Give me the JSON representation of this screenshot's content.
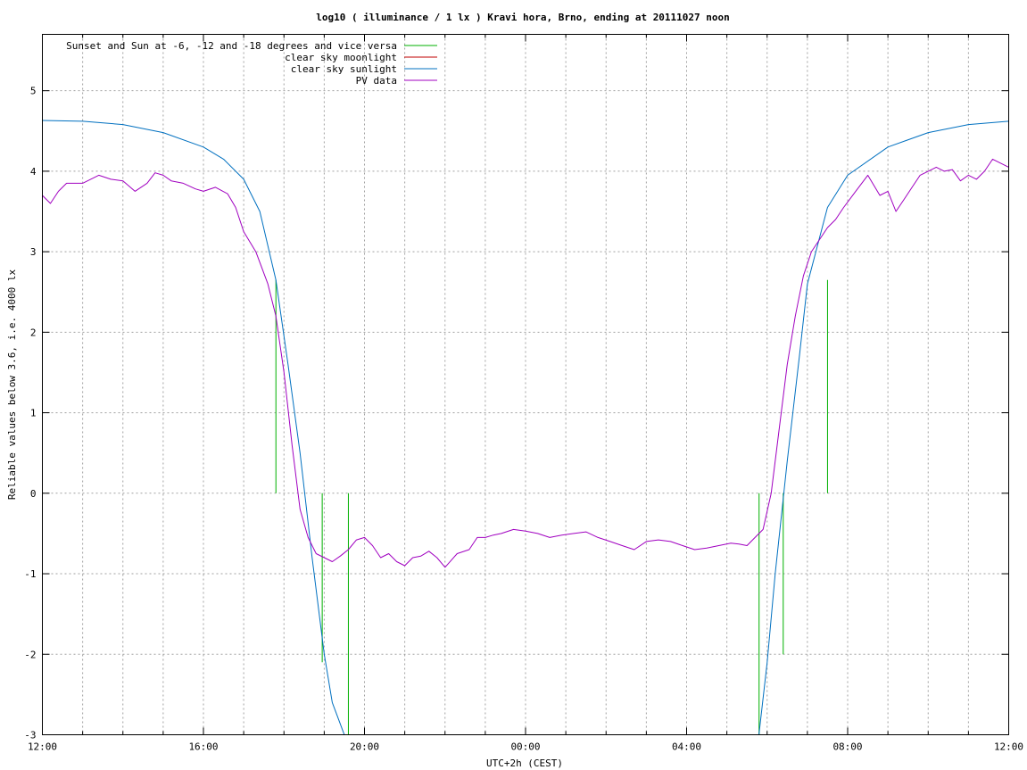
{
  "colors": {
    "sun_events": "#00b000",
    "moonlight": "#c00000",
    "sunlight": "#0070c0",
    "pv_data": "#a000c0"
  },
  "chart_data": {
    "type": "line",
    "title": "log10 ( illuminance / 1 lx ) Kravi hora, Brno, ending at 20111027 noon",
    "xlabel": "UTC+2h (CEST)",
    "ylabel": "Reliable values below 3.6, i.e. 4000 lx",
    "x_unit": "hours since 12:00",
    "xlim": [
      0,
      24
    ],
    "ylim": [
      -3,
      5.7
    ],
    "x_tick_labels": [
      "12:00",
      "16:00",
      "20:00",
      "00:00",
      "04:00",
      "08:00",
      "12:00"
    ],
    "x_tick_positions": [
      0,
      4,
      8,
      12,
      16,
      20,
      24
    ],
    "y_ticks": [
      -3,
      -2,
      -1,
      0,
      1,
      2,
      3,
      4,
      5
    ],
    "grid": true,
    "legend_position": "top-left",
    "legend": [
      "Sunset and Sun at -6, -12 and -18 degrees and vice versa",
      "clear sky moonlight",
      "clear sky sunlight",
      "PV data"
    ],
    "series": [
      {
        "name": "Sunset and Sun at -6, -12 and -18 degrees and vice versa",
        "kind": "impulses",
        "x": [
          5.8,
          6.95,
          7.6,
          17.8,
          18.4,
          19.5
        ],
        "y": [
          2.65,
          -2.1,
          -3,
          -3,
          -2,
          2.65
        ]
      },
      {
        "name": "clear sky moonlight",
        "kind": "line",
        "x": [],
        "y": []
      },
      {
        "name": "clear sky sunlight",
        "kind": "line",
        "x": [
          0,
          1,
          2,
          3,
          4,
          4.5,
          5,
          5.4,
          5.8,
          6.1,
          6.4,
          6.7,
          7.0,
          7.2,
          7.5,
          7.7,
          7.85,
          17.55,
          17.75,
          18.0,
          18.2,
          18.5,
          18.8,
          19.0,
          19.5,
          20.0,
          21.0,
          22.0,
          23.0,
          24.0
        ],
        "y": [
          4.63,
          4.62,
          4.58,
          4.48,
          4.3,
          4.15,
          3.9,
          3.5,
          2.65,
          1.6,
          0.5,
          -0.8,
          -2.0,
          -2.6,
          -3.0,
          -3.3,
          -3.6,
          -3.6,
          -3.2,
          -2.1,
          -1.0,
          0.4,
          1.7,
          2.6,
          3.55,
          3.95,
          4.3,
          4.48,
          4.58,
          4.62
        ]
      },
      {
        "name": "PV data",
        "kind": "line",
        "x": [
          0,
          0.2,
          0.4,
          0.6,
          1.0,
          1.4,
          1.7,
          2.0,
          2.3,
          2.6,
          2.8,
          3.0,
          3.2,
          3.5,
          3.8,
          4.0,
          4.3,
          4.6,
          4.8,
          5.0,
          5.3,
          5.6,
          5.8,
          6.0,
          6.2,
          6.4,
          6.6,
          6.8,
          7.0,
          7.2,
          7.4,
          7.6,
          7.8,
          8.0,
          8.2,
          8.4,
          8.6,
          8.8,
          9.0,
          9.2,
          9.4,
          9.6,
          9.8,
          10.0,
          10.3,
          10.6,
          10.8,
          11.0,
          11.2,
          11.4,
          11.7,
          12.0,
          12.3,
          12.6,
          12.9,
          13.2,
          13.5,
          13.8,
          14.1,
          14.4,
          14.7,
          15.0,
          15.3,
          15.6,
          15.9,
          16.2,
          16.5,
          16.8,
          17.1,
          17.3,
          17.5,
          17.7,
          17.9,
          18.1,
          18.3,
          18.5,
          18.7,
          18.9,
          19.1,
          19.3,
          19.5,
          19.7,
          19.9,
          20.2,
          20.5,
          20.8,
          21.0,
          21.2,
          21.4,
          21.6,
          21.8,
          22.0,
          22.2,
          22.4,
          22.6,
          22.8,
          23.0,
          23.2,
          23.4,
          23.6,
          23.8,
          24.0
        ],
        "y": [
          3.7,
          3.6,
          3.75,
          3.85,
          3.85,
          3.95,
          3.9,
          3.88,
          3.75,
          3.85,
          3.98,
          3.95,
          3.88,
          3.85,
          3.78,
          3.75,
          3.8,
          3.72,
          3.55,
          3.25,
          3.0,
          2.6,
          2.2,
          1.5,
          0.6,
          -0.2,
          -0.55,
          -0.75,
          -0.8,
          -0.85,
          -0.78,
          -0.7,
          -0.58,
          -0.55,
          -0.65,
          -0.8,
          -0.75,
          -0.85,
          -0.9,
          -0.8,
          -0.78,
          -0.72,
          -0.8,
          -0.92,
          -0.75,
          -0.7,
          -0.55,
          -0.55,
          -0.52,
          -0.5,
          -0.45,
          -0.47,
          -0.5,
          -0.55,
          -0.52,
          -0.5,
          -0.48,
          -0.55,
          -0.6,
          -0.65,
          -0.7,
          -0.6,
          -0.58,
          -0.6,
          -0.65,
          -0.7,
          -0.68,
          -0.65,
          -0.62,
          -0.63,
          -0.65,
          -0.55,
          -0.45,
          0.0,
          0.8,
          1.6,
          2.2,
          2.7,
          3.0,
          3.15,
          3.3,
          3.4,
          3.55,
          3.75,
          3.95,
          3.7,
          3.75,
          3.5,
          3.65,
          3.8,
          3.95,
          4.0,
          4.05,
          4.0,
          4.02,
          3.88,
          3.95,
          3.9,
          4.0,
          4.15,
          4.1,
          4.05
        ]
      }
    ]
  }
}
